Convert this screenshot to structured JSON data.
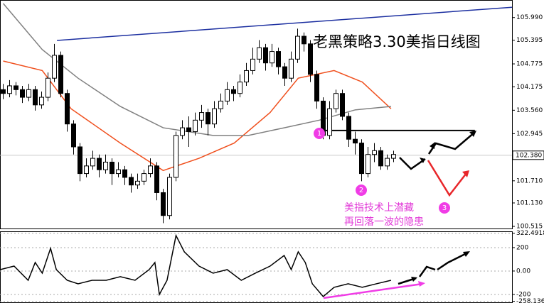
{
  "chart_data": [
    {
      "type": "candlestick",
      "title": "老黑策略3.30美指日线图",
      "title_color": "#e8262a",
      "xlim": [
        -0.5,
        79.5
      ],
      "ylim": [
        100.46,
        106.45
      ],
      "yticks": [
        {
          "value": 105.99,
          "label": "105.990"
        },
        105.395,
        104.775,
        104.175,
        {
          "value": 103.56,
          "label": "103.560"
        },
        102.945,
        {
          "value": 101.71,
          "label": "101.710"
        },
        {
          "value": 101.13,
          "label": "101.130"
        },
        100.515
      ],
      "current_price": {
        "value": 102.38,
        "label": "102.380"
      },
      "up_color": "#ffffff",
      "down_color": "#000000",
      "ohlc": [
        [
          104.1,
          104.25,
          103.85,
          104.0
        ],
        [
          104.0,
          104.35,
          103.9,
          104.2
        ],
        [
          104.2,
          104.3,
          103.95,
          104.1
        ],
        [
          104.1,
          104.2,
          103.75,
          103.9
        ],
        [
          103.9,
          104.25,
          103.8,
          104.1
        ],
        [
          104.1,
          104.2,
          103.55,
          103.7
        ],
        [
          103.7,
          104.05,
          103.6,
          103.9
        ],
        [
          103.9,
          104.55,
          103.8,
          104.4
        ],
        [
          104.4,
          105.3,
          104.3,
          105.0
        ],
        [
          105.0,
          105.1,
          103.9,
          104.0
        ],
        [
          104.0,
          104.1,
          103.0,
          103.2
        ],
        [
          103.2,
          103.3,
          102.4,
          102.6
        ],
        [
          102.6,
          102.7,
          101.7,
          101.9
        ],
        [
          101.9,
          102.3,
          101.8,
          102.1
        ],
        [
          102.1,
          102.5,
          102.0,
          102.3
        ],
        [
          102.3,
          102.4,
          101.8,
          102.0
        ],
        [
          102.0,
          102.4,
          101.9,
          102.2
        ],
        [
          102.2,
          102.3,
          101.6,
          101.9
        ],
        [
          101.9,
          102.2,
          101.8,
          102.0
        ],
        [
          102.0,
          102.1,
          101.6,
          101.8
        ],
        [
          101.8,
          101.9,
          101.4,
          101.6
        ],
        [
          101.6,
          101.9,
          101.5,
          101.7
        ],
        [
          101.7,
          102.0,
          101.6,
          101.9
        ],
        [
          101.9,
          102.3,
          101.8,
          102.1
        ],
        [
          102.1,
          102.2,
          101.2,
          101.4
        ],
        [
          101.4,
          101.5,
          100.6,
          100.8
        ],
        [
          100.8,
          101.9,
          100.7,
          101.8
        ],
        [
          101.8,
          103.0,
          101.7,
          102.9
        ],
        [
          102.9,
          103.3,
          102.8,
          103.1
        ],
        [
          103.1,
          103.4,
          102.6,
          103.0
        ],
        [
          103.0,
          103.5,
          102.9,
          103.3
        ],
        [
          103.3,
          103.7,
          103.1,
          103.5
        ],
        [
          103.5,
          103.6,
          102.9,
          103.2
        ],
        [
          103.2,
          103.8,
          103.1,
          103.6
        ],
        [
          103.6,
          104.0,
          103.5,
          103.8
        ],
        [
          103.8,
          104.3,
          103.7,
          104.1
        ],
        [
          104.1,
          104.2,
          103.8,
          104.0
        ],
        [
          104.0,
          104.5,
          103.9,
          104.3
        ],
        [
          104.3,
          104.8,
          104.2,
          104.6
        ],
        [
          104.6,
          105.2,
          104.5,
          104.9
        ],
        [
          104.9,
          105.4,
          104.8,
          105.2
        ],
        [
          105.2,
          105.3,
          104.6,
          104.8
        ],
        [
          104.8,
          105.3,
          104.7,
          105.1
        ],
        [
          105.1,
          105.2,
          104.5,
          104.7
        ],
        [
          104.7,
          104.8,
          104.2,
          104.4
        ],
        [
          104.4,
          105.1,
          104.3,
          104.9
        ],
        [
          104.9,
          105.7,
          104.8,
          105.5
        ],
        [
          105.5,
          105.6,
          105.1,
          105.3
        ],
        [
          105.3,
          105.4,
          104.3,
          104.5
        ],
        [
          104.5,
          104.6,
          103.6,
          103.8
        ],
        [
          103.8,
          103.9,
          102.8,
          102.9
        ],
        [
          102.9,
          103.8,
          102.8,
          103.6
        ],
        [
          103.6,
          104.1,
          103.5,
          104.0
        ],
        [
          104.0,
          104.1,
          103.3,
          103.4
        ],
        [
          103.4,
          103.5,
          102.6,
          102.8
        ],
        [
          102.8,
          103.0,
          102.4,
          102.7
        ],
        [
          102.7,
          102.8,
          101.7,
          101.9
        ],
        [
          101.9,
          102.6,
          101.8,
          102.4
        ],
        [
          102.4,
          102.7,
          102.2,
          102.5
        ],
        [
          102.5,
          102.6,
          102.0,
          102.1
        ],
        [
          102.1,
          102.4,
          102.0,
          102.3
        ],
        [
          102.3,
          102.5,
          102.2,
          102.4
        ]
      ],
      "series": [
        {
          "color": "#f0501e",
          "x": [
            0,
            6.1,
            10.6,
            18.3,
            25,
            30.6,
            36.1,
            41.7,
            46.1,
            51.7,
            56.1,
            60.6
          ],
          "values": [
            104.85,
            104.6,
            103.6,
            102.7,
            101.98,
            102.3,
            102.7,
            103.5,
            104.4,
            104.6,
            104.3,
            103.6
          ]
        },
        {
          "color": "#808080",
          "x": [
            0,
            6.1,
            11.7,
            18.3,
            25,
            32.8,
            38.3,
            43.9,
            49.4,
            55,
            60.6
          ],
          "values": [
            106.36,
            105.15,
            104.4,
            103.66,
            103.1,
            102.9,
            102.9,
            103.1,
            103.3,
            103.57,
            103.66
          ]
        },
        {
          "color": "#1c2fa0",
          "x": [
            8.4,
            79.5
          ],
          "values": [
            105.39,
            106.26
          ]
        },
        {
          "color": "#000000",
          "x": [
            49.4,
            73.7
          ],
          "values": [
            103.03,
            103.03
          ]
        }
      ],
      "markers": [
        "1",
        "2",
        "3"
      ],
      "annotations": [
        "美指技术上潜藏",
        "再回落一波的隐患"
      ]
    },
    {
      "type": "line",
      "xlim": [
        -0.5,
        79.5
      ],
      "ylim": [
        -273,
        339
      ],
      "yticks": [
        322.4918,
        200,
        {
          "value": 0,
          "label": "0.00"
        },
        -200,
        -258.136
      ],
      "series": [
        {
          "color": "#000000",
          "x": [
            -0.5,
            1.7,
            3.9,
            5,
            6.1,
            7.4,
            8.3,
            10,
            11.7,
            13.9,
            16.1,
            18.3,
            20.6,
            22.8,
            23.7,
            24.4,
            25.6,
            27,
            28.3,
            30.6,
            32.8,
            35,
            37.2,
            39.4,
            41.7,
            43.9,
            45,
            46.1,
            47.2,
            48.3,
            50,
            51.7,
            53.9,
            56.1,
            58.3,
            60.6
          ],
          "values": [
            12,
            42,
            -79,
            73,
            -18,
            194,
            12,
            -79,
            -109,
            -79,
            -79,
            -48,
            -79,
            12,
            73,
            -200,
            -79,
            303,
            164,
            42,
            -18,
            12,
            -79,
            -18,
            42,
            133,
            12,
            164,
            73,
            -109,
            -218,
            -139,
            -109,
            -139,
            -109,
            -79
          ]
        }
      ]
    }
  ]
}
